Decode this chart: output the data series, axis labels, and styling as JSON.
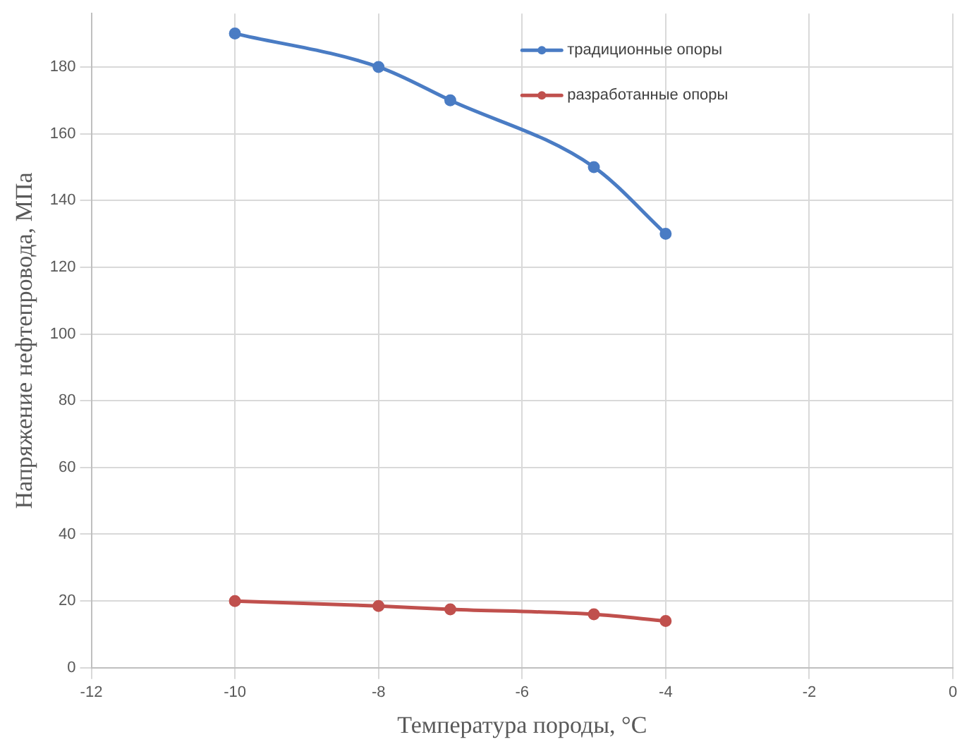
{
  "chart_data": {
    "type": "line",
    "xlabel": "Температура породы, °C",
    "ylabel": "Напряжение нефтепровода, МПа",
    "x": [
      -10,
      -8,
      -7,
      -5,
      -4
    ],
    "series": [
      {
        "name": "традиционные опоры",
        "color": "#4a7cc4",
        "values": [
          190,
          180,
          170,
          150,
          130
        ]
      },
      {
        "name": "разработанные опоры",
        "color": "#c0504d",
        "values": [
          20,
          18.5,
          17.5,
          16,
          14
        ]
      }
    ],
    "xlim": [
      -12,
      0
    ],
    "xticks": [
      -12,
      -10,
      -8,
      -6,
      -4,
      -2,
      0
    ],
    "ylim": [
      0,
      196
    ],
    "yticks": [
      0,
      20,
      40,
      60,
      80,
      100,
      120,
      140,
      160,
      180
    ],
    "grid": true,
    "legend": "top right",
    "marker": "circle",
    "line_style": "solid"
  }
}
